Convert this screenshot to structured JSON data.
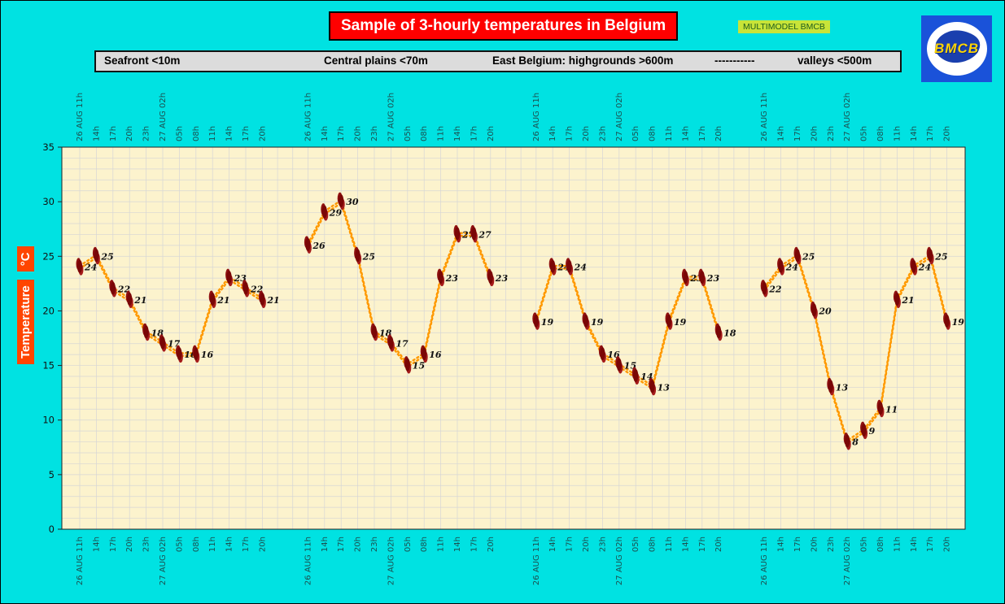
{
  "header": {
    "title": "Sample of 3-hourly temperatures in Belgium",
    "badge": "MULTIMODEL BMCB",
    "logo_text": "BMCB"
  },
  "legend": {
    "items": [
      "Seafront <10m",
      "Central plains <70m",
      "East Belgium: highgrounds >600m",
      "-----------",
      "valleys <500m"
    ]
  },
  "yaxis": {
    "label": "Temperature",
    "unit": "°C"
  },
  "chart_data": {
    "type": "line",
    "title": "Sample of 3-hourly temperatures in Belgium",
    "time_labels": [
      "26 AUG 11h",
      "14h",
      "17h",
      "20h",
      "23h",
      "27 AUG 02h",
      "05h",
      "08h",
      "11h",
      "14h",
      "17h",
      "20h"
    ],
    "ylim": [
      0,
      35
    ],
    "yticks": [
      0,
      5,
      10,
      15,
      20,
      25,
      30,
      35
    ],
    "ylabel": "Temperature °C",
    "grid": true,
    "series": [
      {
        "name": "Seafront <10m",
        "values": [
          24,
          25,
          22,
          21,
          18,
          17,
          16,
          16,
          21,
          23,
          22,
          21
        ]
      },
      {
        "name": "Central plains <70m",
        "values": [
          26,
          29,
          30,
          25,
          18,
          17,
          15,
          16,
          23,
          27,
          27,
          23
        ]
      },
      {
        "name": "East Belgium: highgrounds >600m",
        "values": [
          19,
          24,
          24,
          19,
          16,
          15,
          14,
          13,
          19,
          23,
          23,
          18
        ]
      },
      {
        "name": "valleys <500m",
        "values": [
          22,
          24,
          25,
          20,
          13,
          8,
          9,
          11,
          21,
          24,
          25,
          19
        ]
      }
    ],
    "colors": {
      "background": "#00e2e2",
      "plot_bg": "#fcf3cd",
      "grid": "#d6d6d6",
      "line": "#ff9900",
      "marker": "#7a0606",
      "value_label": "#111111",
      "time_label": "#1c4f4f",
      "title_bg": "#fe0000",
      "badge_bg": "#c8e438",
      "ylabel_bg": "#ff4500"
    }
  }
}
